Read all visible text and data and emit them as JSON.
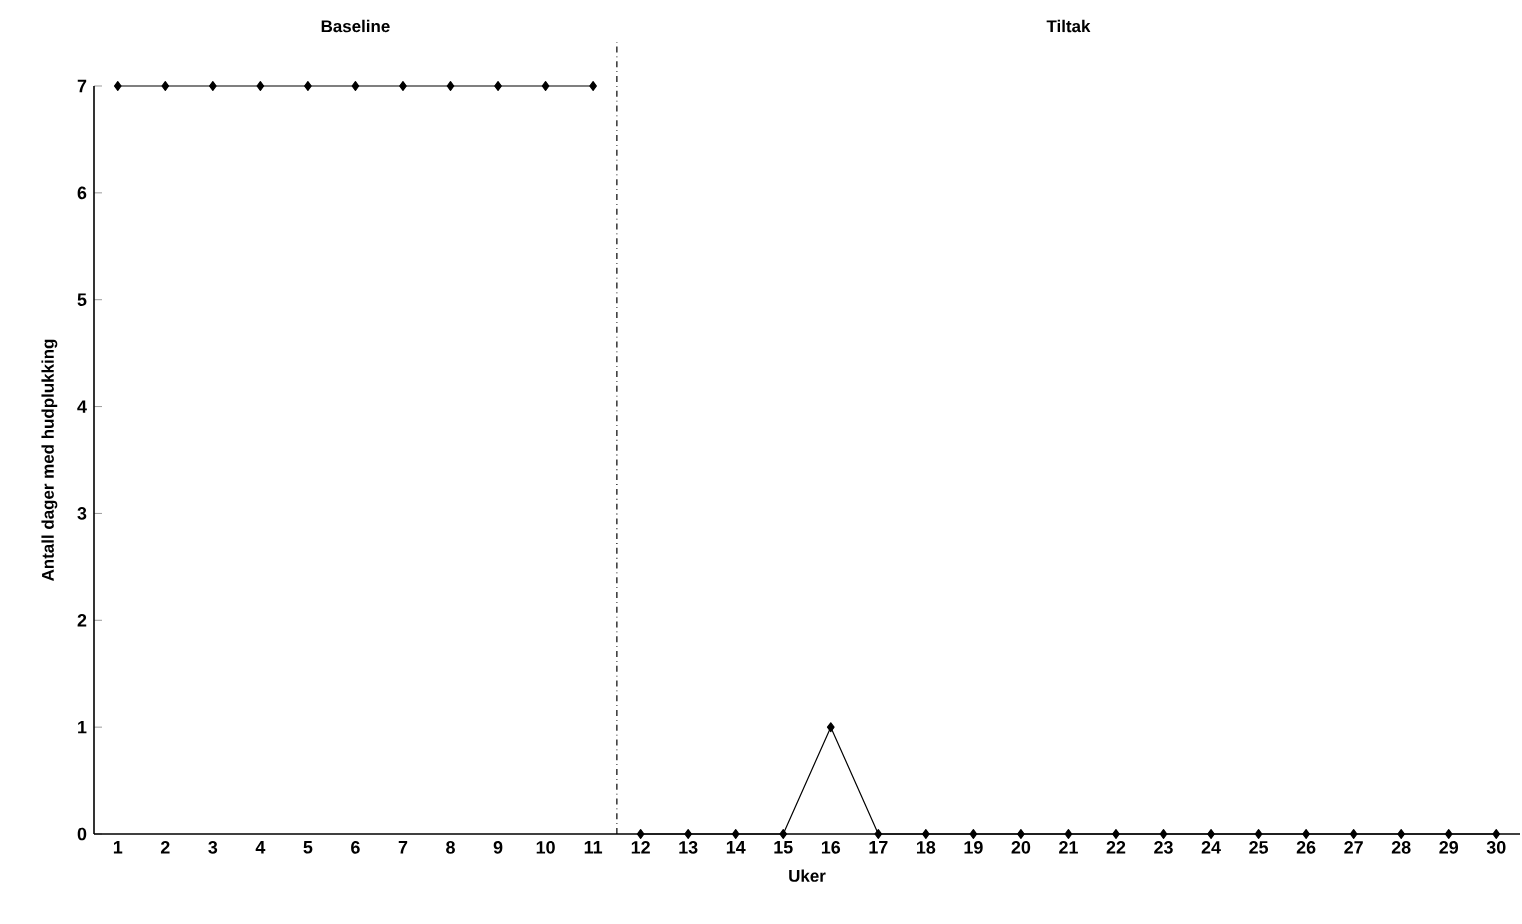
{
  "chart_data": {
    "type": "line",
    "xlabel": "Uker",
    "ylabel": "Antall dager med hudplukking",
    "annotations": [
      "Baseline",
      "Tiltak"
    ],
    "series": [
      {
        "color": "#000000",
        "x": [
          1,
          2,
          3,
          4,
          5,
          6,
          7,
          8,
          9,
          10,
          11
        ],
        "values": [
          7,
          7,
          7,
          7,
          7,
          7,
          7,
          7,
          7,
          7,
          7
        ]
      },
      {
        "color": "#000000",
        "x": [
          12,
          13,
          14,
          15,
          16,
          17,
          18,
          19,
          20,
          21,
          22,
          23,
          24,
          25,
          26,
          27,
          28,
          29,
          30
        ],
        "values": [
          0,
          0,
          0,
          0,
          1,
          0,
          0,
          0,
          0,
          0,
          0,
          0,
          0,
          0,
          0,
          0,
          0,
          0,
          0
        ]
      }
    ],
    "xlim": [
      0.5,
      30.5
    ],
    "ylim": [
      0,
      7
    ],
    "xticks": [
      1,
      2,
      3,
      4,
      5,
      6,
      7,
      8,
      9,
      10,
      11,
      12,
      13,
      14,
      15,
      16,
      17,
      18,
      19,
      20,
      21,
      22,
      23,
      24,
      25,
      26,
      27,
      28,
      29,
      30
    ],
    "yticks": [
      0,
      1,
      2,
      3,
      4,
      5,
      6,
      7
    ],
    "ref_lines": [
      {
        "axis": "x",
        "value": 11.5,
        "line_style": "dashdot",
        "color": "#000000"
      }
    ],
    "marker": "diamond",
    "line_style": "solid",
    "grid": false
  }
}
